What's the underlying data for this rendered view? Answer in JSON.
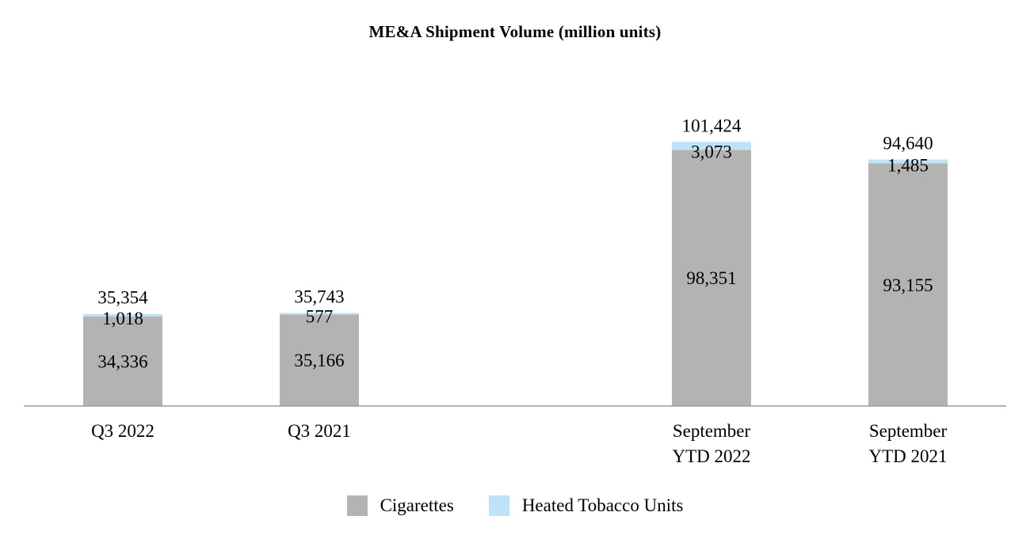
{
  "chart_data": {
    "type": "bar",
    "stacked": true,
    "title": "ME&A Shipment Volume (million units)",
    "categories": [
      "Q3 2022",
      "Q3 2021",
      "September YTD 2022",
      "September YTD 2021"
    ],
    "category_label_lines": [
      [
        "Q3 2022"
      ],
      [
        "Q3 2021"
      ],
      [
        "September",
        "YTD 2022"
      ],
      [
        "September",
        "YTD 2021"
      ]
    ],
    "series": [
      {
        "name": "Cigarettes",
        "color": "#b3b3b3",
        "values": [
          34336,
          35166,
          98351,
          93155
        ],
        "labels": [
          "34,336",
          "35,166",
          "98,351",
          "93,155"
        ]
      },
      {
        "name": "Heated Tobacco Units",
        "color": "#bde3f8",
        "values": [
          1018,
          577,
          3073,
          1485
        ],
        "labels": [
          "1,018",
          "577",
          "3,073",
          "1,485"
        ]
      }
    ],
    "totals": [
      35354,
      35743,
      101424,
      94640
    ],
    "total_labels": [
      "35,354",
      "35,743",
      "101,424",
      "94,640"
    ],
    "ylim": [
      0,
      112000
    ],
    "grid": false,
    "legend": "bottom-center",
    "axis_color": "#999999"
  }
}
